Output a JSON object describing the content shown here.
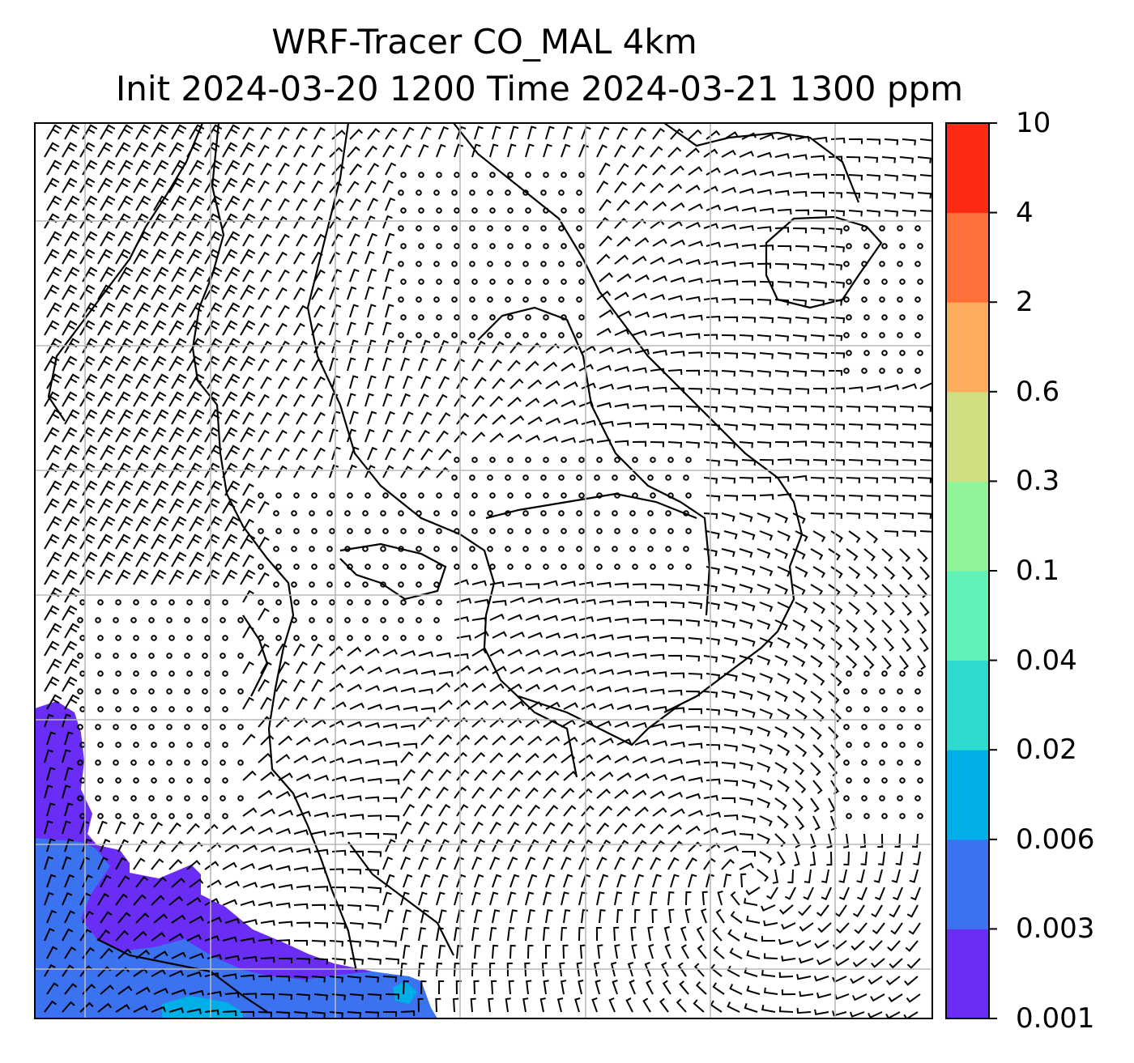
{
  "title": {
    "line1": "WRF-Tracer CO_MAL 4km",
    "line2": "Init 2024-03-20 1200 Time 2024-03-21 1300 ppm"
  },
  "colorbar": {
    "levels": [
      "0.001",
      "0.003",
      "0.006",
      "0.02",
      "0.04",
      "0.1",
      "0.3",
      "0.6",
      "2",
      "4",
      "10"
    ],
    "colors": [
      "#6a2df5",
      "#3a72ef",
      "#00aee8",
      "#2ed9cf",
      "#5ff3b8",
      "#8ff49a",
      "#cfdf82",
      "#fdac5e",
      "#ff7138",
      "#ff2a14"
    ]
  },
  "map": {
    "field": "CO_MAL tracer",
    "units": "ppm",
    "overlay": "wind barbs",
    "grid": true,
    "coastlines": true,
    "plume_colors": {
      "low": "#6a2df5",
      "mid": "#3a72ef",
      "high": "#00aee8"
    }
  }
}
